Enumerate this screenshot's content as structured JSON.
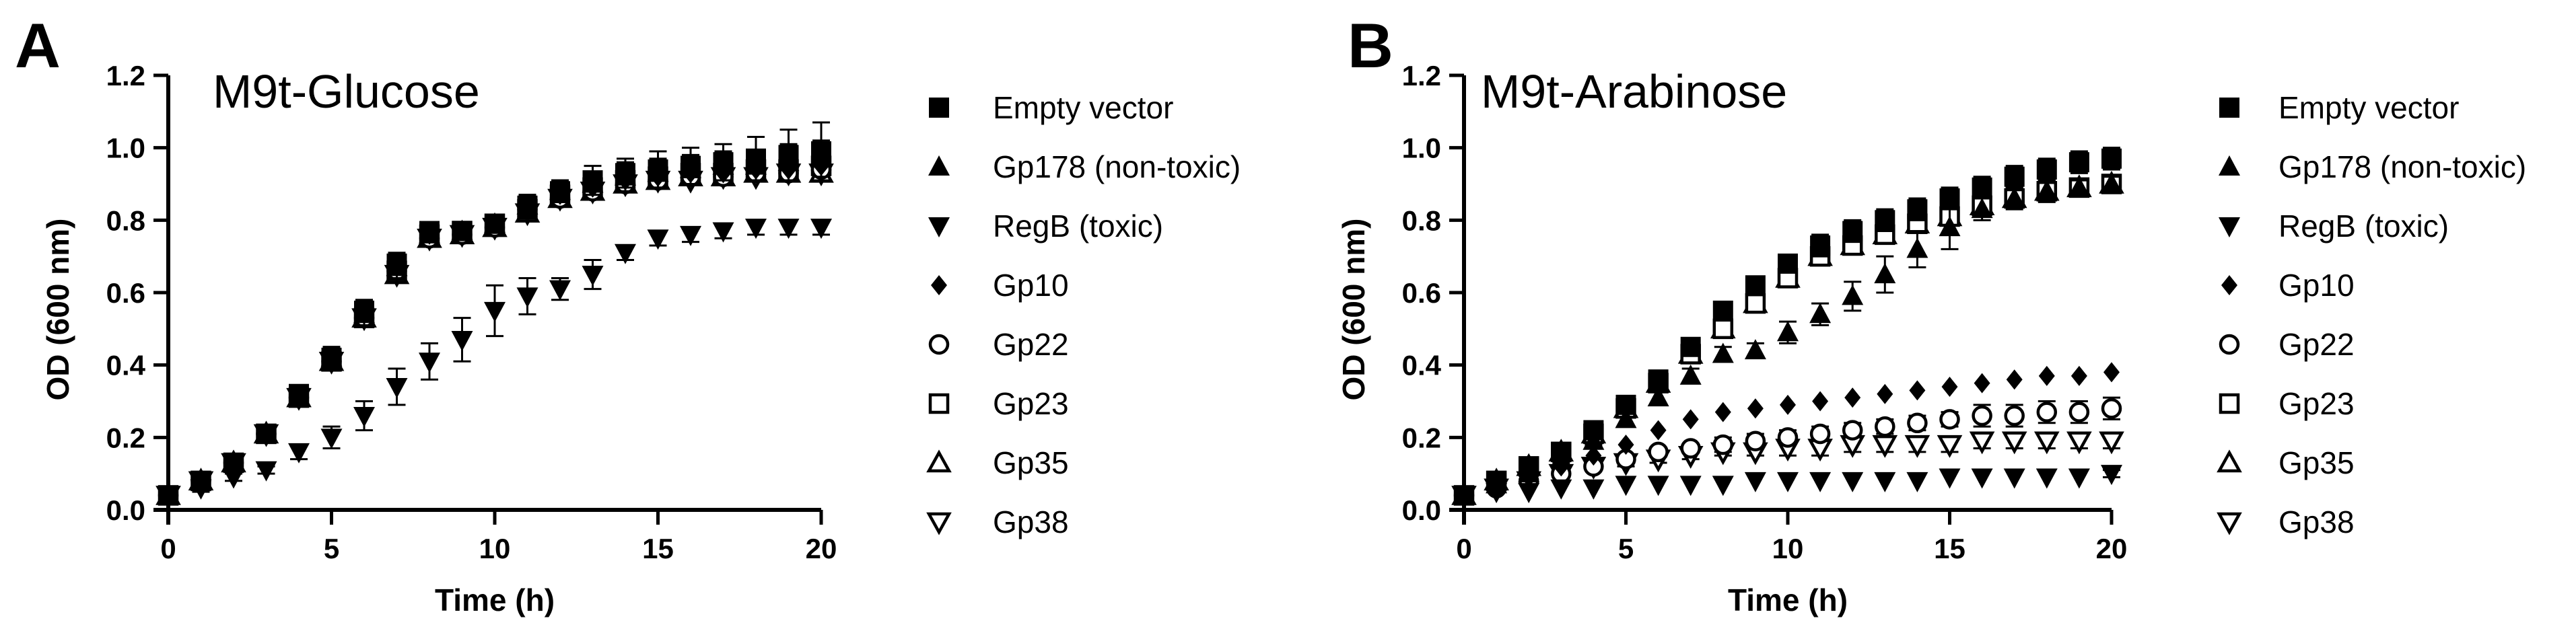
{
  "chart_data": [
    {
      "type": "scatter",
      "panel": "A",
      "title": "M9t-Glucose",
      "xlabel": "Time (h)",
      "ylabel": "OD (600 nm)",
      "xlim": [
        0,
        20
      ],
      "ylim": [
        0,
        1.2
      ],
      "xticks": [
        0,
        5,
        10,
        15,
        20
      ],
      "yticks": [
        0.0,
        0.2,
        0.4,
        0.6,
        0.8,
        1.0,
        1.2
      ],
      "ytick_labels": [
        "0.0",
        "0.2",
        "0.4",
        "0.6",
        "0.8",
        "1.0",
        "1.2"
      ],
      "grid": false,
      "legend_position": "right",
      "x": [
        0,
        1,
        2,
        3,
        4,
        5,
        6,
        7,
        8,
        9,
        10,
        11,
        12,
        13,
        14,
        15,
        16,
        17,
        18,
        19,
        20
      ],
      "series": [
        {
          "name": "Empty vector",
          "marker": "square-filled",
          "values": [
            0.04,
            0.08,
            0.13,
            0.21,
            0.32,
            0.42,
            0.55,
            0.68,
            0.77,
            0.77,
            0.79,
            0.84,
            0.88,
            0.91,
            0.93,
            0.94,
            0.95,
            0.96,
            0.97,
            0.98,
            0.99
          ],
          "error": [
            0,
            0.01,
            0.01,
            0.02,
            0.02,
            0.03,
            0.03,
            0.03,
            0.02,
            0.02,
            0.02,
            0.03,
            0.03,
            0.04,
            0.04,
            0.05,
            0.05,
            0.05,
            0.06,
            0.07,
            0.08
          ]
        },
        {
          "name": "Gp178 (non-toxic)",
          "marker": "triangle-up-filled",
          "values": [
            0.04,
            0.08,
            0.13,
            0.21,
            0.31,
            0.42,
            0.54,
            0.67,
            0.76,
            0.77,
            0.79,
            0.84,
            0.88,
            0.9,
            0.92,
            0.93,
            0.94,
            0.95,
            0.95,
            0.96,
            0.97
          ],
          "error": [
            0,
            0.01,
            0.01,
            0.02,
            0.02,
            0.03,
            0.03,
            0.03,
            0.02,
            0.02,
            0.02,
            0.03,
            0.03,
            0.03,
            0.04,
            0.04,
            0.04,
            0.04,
            0.04,
            0.05,
            0.05
          ]
        },
        {
          "name": "RegB (toxic)",
          "marker": "triangle-down-filled",
          "values": [
            0.04,
            0.06,
            0.09,
            0.11,
            0.16,
            0.2,
            0.26,
            0.34,
            0.41,
            0.47,
            0.55,
            0.59,
            0.61,
            0.65,
            0.71,
            0.75,
            0.76,
            0.77,
            0.78,
            0.78,
            0.78
          ],
          "error": [
            0,
            0.01,
            0.01,
            0.01,
            0.02,
            0.03,
            0.04,
            0.05,
            0.05,
            0.06,
            0.07,
            0.05,
            0.03,
            0.04,
            0.02,
            0.02,
            0.02,
            0.02,
            0.02,
            0.02,
            0.02
          ]
        },
        {
          "name": "Gp10",
          "marker": "diamond-filled",
          "values": [
            0.04,
            0.08,
            0.13,
            0.21,
            0.31,
            0.42,
            0.54,
            0.67,
            0.76,
            0.77,
            0.79,
            0.83,
            0.87,
            0.89,
            0.91,
            0.92,
            0.93,
            0.93,
            0.94,
            0.94,
            0.95
          ],
          "error": [
            0,
            0,
            0,
            0,
            0,
            0,
            0,
            0,
            0,
            0,
            0,
            0,
            0,
            0,
            0,
            0,
            0,
            0,
            0,
            0,
            0
          ]
        },
        {
          "name": "Gp22",
          "marker": "circle-open",
          "values": [
            0.04,
            0.08,
            0.13,
            0.21,
            0.31,
            0.41,
            0.53,
            0.66,
            0.75,
            0.76,
            0.78,
            0.83,
            0.86,
            0.88,
            0.9,
            0.91,
            0.92,
            0.92,
            0.93,
            0.93,
            0.94
          ],
          "error": [
            0,
            0,
            0,
            0,
            0,
            0,
            0,
            0,
            0,
            0,
            0,
            0,
            0,
            0,
            0,
            0,
            0,
            0,
            0,
            0,
            0
          ]
        },
        {
          "name": "Gp23",
          "marker": "square-open",
          "values": [
            0.04,
            0.08,
            0.13,
            0.21,
            0.31,
            0.41,
            0.53,
            0.66,
            0.76,
            0.77,
            0.79,
            0.83,
            0.87,
            0.89,
            0.91,
            0.92,
            0.93,
            0.93,
            0.94,
            0.94,
            0.95
          ],
          "error": [
            0,
            0,
            0,
            0,
            0,
            0,
            0,
            0,
            0,
            0,
            0,
            0,
            0,
            0,
            0,
            0,
            0,
            0,
            0,
            0,
            0
          ]
        },
        {
          "name": "Gp35",
          "marker": "triangle-up-open",
          "values": [
            0.04,
            0.08,
            0.13,
            0.21,
            0.31,
            0.41,
            0.53,
            0.65,
            0.75,
            0.76,
            0.78,
            0.82,
            0.86,
            0.88,
            0.9,
            0.91,
            0.92,
            0.92,
            0.93,
            0.93,
            0.93
          ],
          "error": [
            0,
            0,
            0,
            0,
            0,
            0,
            0,
            0,
            0,
            0,
            0,
            0,
            0,
            0,
            0,
            0,
            0,
            0,
            0,
            0,
            0
          ]
        },
        {
          "name": "Gp38",
          "marker": "triangle-down-open",
          "values": [
            0.04,
            0.08,
            0.13,
            0.21,
            0.31,
            0.41,
            0.53,
            0.65,
            0.75,
            0.76,
            0.78,
            0.82,
            0.86,
            0.88,
            0.9,
            0.91,
            0.91,
            0.92,
            0.92,
            0.93,
            0.93
          ],
          "error": [
            0,
            0,
            0,
            0,
            0,
            0,
            0,
            0,
            0,
            0,
            0,
            0,
            0,
            0,
            0,
            0,
            0,
            0,
            0,
            0,
            0
          ]
        }
      ]
    },
    {
      "type": "scatter",
      "panel": "B",
      "title": "M9t-Arabinose",
      "xlabel": "Time (h)",
      "ylabel": "OD (600 nm)",
      "xlim": [
        0,
        20
      ],
      "ylim": [
        0,
        1.2
      ],
      "xticks": [
        0,
        5,
        10,
        15,
        20
      ],
      "yticks": [
        0.0,
        0.2,
        0.4,
        0.6,
        0.8,
        1.0,
        1.2
      ],
      "ytick_labels": [
        "0.0",
        "0.2",
        "0.4",
        "0.6",
        "0.8",
        "1.0",
        "1.2"
      ],
      "grid": false,
      "legend_position": "right",
      "x": [
        0,
        1,
        2,
        3,
        4,
        5,
        6,
        7,
        8,
        9,
        10,
        11,
        12,
        13,
        14,
        15,
        16,
        17,
        18,
        19,
        20
      ],
      "series": [
        {
          "name": "Empty vector",
          "marker": "square-filled",
          "values": [
            0.04,
            0.08,
            0.12,
            0.16,
            0.22,
            0.29,
            0.36,
            0.45,
            0.55,
            0.62,
            0.68,
            0.73,
            0.77,
            0.8,
            0.83,
            0.86,
            0.89,
            0.92,
            0.94,
            0.96,
            0.97
          ],
          "error": [
            0,
            0.01,
            0.01,
            0.01,
            0.01,
            0.02,
            0.02,
            0.02,
            0.02,
            0.02,
            0.02,
            0.03,
            0.03,
            0.03,
            0.03,
            0.03,
            0.03,
            0.03,
            0.03,
            0.03,
            0.03
          ]
        },
        {
          "name": "Gp178 (non-toxic)",
          "marker": "triangle-up-filled",
          "values": [
            0.04,
            0.07,
            0.1,
            0.14,
            0.19,
            0.25,
            0.31,
            0.37,
            0.43,
            0.44,
            0.49,
            0.54,
            0.59,
            0.65,
            0.72,
            0.78,
            0.83,
            0.86,
            0.88,
            0.89,
            0.9
          ],
          "error": [
            0,
            0.01,
            0.01,
            0.01,
            0.01,
            0.02,
            0.02,
            0.02,
            0.02,
            0.02,
            0.03,
            0.03,
            0.04,
            0.05,
            0.05,
            0.06,
            0.03,
            0.03,
            0.03,
            0.02,
            0.02
          ]
        },
        {
          "name": "RegB (toxic)",
          "marker": "triangle-down-filled",
          "values": [
            0.04,
            0.05,
            0.05,
            0.06,
            0.06,
            0.07,
            0.07,
            0.07,
            0.07,
            0.08,
            0.08,
            0.08,
            0.08,
            0.08,
            0.08,
            0.09,
            0.09,
            0.09,
            0.09,
            0.09,
            0.1
          ],
          "error": [
            0,
            0,
            0,
            0,
            0,
            0,
            0,
            0,
            0,
            0,
            0,
            0,
            0,
            0,
            0,
            0,
            0,
            0,
            0,
            0,
            0.01
          ]
        },
        {
          "name": "Gp10",
          "marker": "diamond-filled",
          "values": [
            0.04,
            0.06,
            0.09,
            0.12,
            0.15,
            0.18,
            0.22,
            0.25,
            0.27,
            0.28,
            0.29,
            0.3,
            0.31,
            0.32,
            0.33,
            0.34,
            0.35,
            0.36,
            0.37,
            0.37,
            0.38
          ],
          "error": [
            0,
            0,
            0,
            0,
            0,
            0,
            0,
            0,
            0,
            0,
            0,
            0,
            0,
            0,
            0,
            0,
            0,
            0,
            0,
            0,
            0
          ]
        },
        {
          "name": "Gp22",
          "marker": "circle-open",
          "values": [
            0.04,
            0.06,
            0.08,
            0.1,
            0.12,
            0.14,
            0.16,
            0.17,
            0.18,
            0.19,
            0.2,
            0.21,
            0.22,
            0.23,
            0.24,
            0.25,
            0.26,
            0.26,
            0.27,
            0.27,
            0.28
          ],
          "error": [
            0,
            0.01,
            0.01,
            0.01,
            0.01,
            0.01,
            0.01,
            0.01,
            0.02,
            0.02,
            0.02,
            0.02,
            0.02,
            0.02,
            0.02,
            0.02,
            0.03,
            0.03,
            0.03,
            0.03,
            0.03
          ]
        },
        {
          "name": "Gp23",
          "marker": "square-open",
          "values": [
            0.04,
            0.08,
            0.12,
            0.16,
            0.21,
            0.28,
            0.35,
            0.43,
            0.5,
            0.57,
            0.64,
            0.7,
            0.73,
            0.76,
            0.79,
            0.81,
            0.84,
            0.86,
            0.88,
            0.89,
            0.9
          ],
          "error": [
            0,
            0,
            0,
            0,
            0,
            0,
            0,
            0,
            0,
            0,
            0,
            0,
            0,
            0,
            0,
            0,
            0,
            0,
            0,
            0,
            0
          ]
        },
        {
          "name": "Gp35",
          "marker": "triangle-up-open",
          "values": [
            0.04,
            0.08,
            0.12,
            0.16,
            0.21,
            0.28,
            0.35,
            0.43,
            0.5,
            0.57,
            0.64,
            0.7,
            0.73,
            0.76,
            0.79,
            0.81,
            0.84,
            0.86,
            0.88,
            0.89,
            0.9
          ],
          "error": [
            0,
            0,
            0,
            0,
            0,
            0,
            0,
            0,
            0,
            0,
            0,
            0,
            0,
            0,
            0,
            0,
            0,
            0,
            0,
            0,
            0
          ]
        },
        {
          "name": "Gp38",
          "marker": "triangle-down-open",
          "values": [
            0.04,
            0.06,
            0.08,
            0.1,
            0.12,
            0.13,
            0.14,
            0.15,
            0.16,
            0.16,
            0.17,
            0.17,
            0.18,
            0.18,
            0.18,
            0.18,
            0.19,
            0.19,
            0.19,
            0.19,
            0.19
          ],
          "error": [
            0,
            0.01,
            0.01,
            0.01,
            0.01,
            0.01,
            0.01,
            0.01,
            0.01,
            0.01,
            0.02,
            0.02,
            0.02,
            0.02,
            0.02,
            0.02,
            0.02,
            0.02,
            0.02,
            0.02,
            0.02
          ]
        }
      ]
    }
  ]
}
